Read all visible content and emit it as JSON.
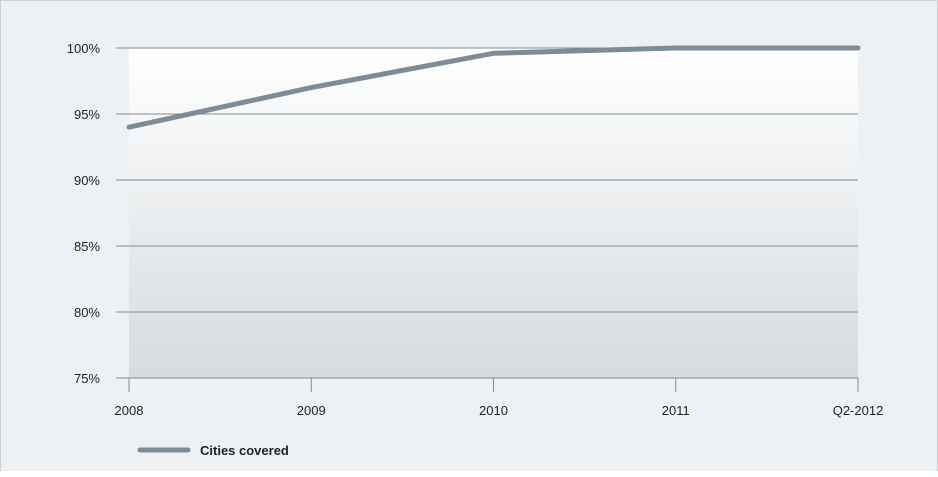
{
  "chart_data": {
    "type": "line",
    "title": "",
    "xlabel": "",
    "ylabel": "",
    "categories": [
      "2008",
      "2009",
      "2010",
      "2011",
      "Q2-2012"
    ],
    "series": [
      {
        "name": "Cities covered",
        "values": [
          94,
          97,
          99.6,
          100,
          100
        ],
        "color": "#7d8c96"
      }
    ],
    "ylim": [
      75,
      100
    ],
    "yticks": [
      100,
      95,
      90,
      85,
      80,
      75
    ],
    "ytick_labels": [
      "100%",
      "95%",
      "90%",
      "85%",
      "80%",
      "75%"
    ],
    "grid": true,
    "legend_position": "bottom-left",
    "colors": {
      "plot_gradient_top": "#ffffff",
      "plot_gradient_bottom": "#d6dbdf",
      "gridline": "#7d8c96",
      "axis": "#7d8c96",
      "frame_background": "#eef1f3"
    }
  }
}
